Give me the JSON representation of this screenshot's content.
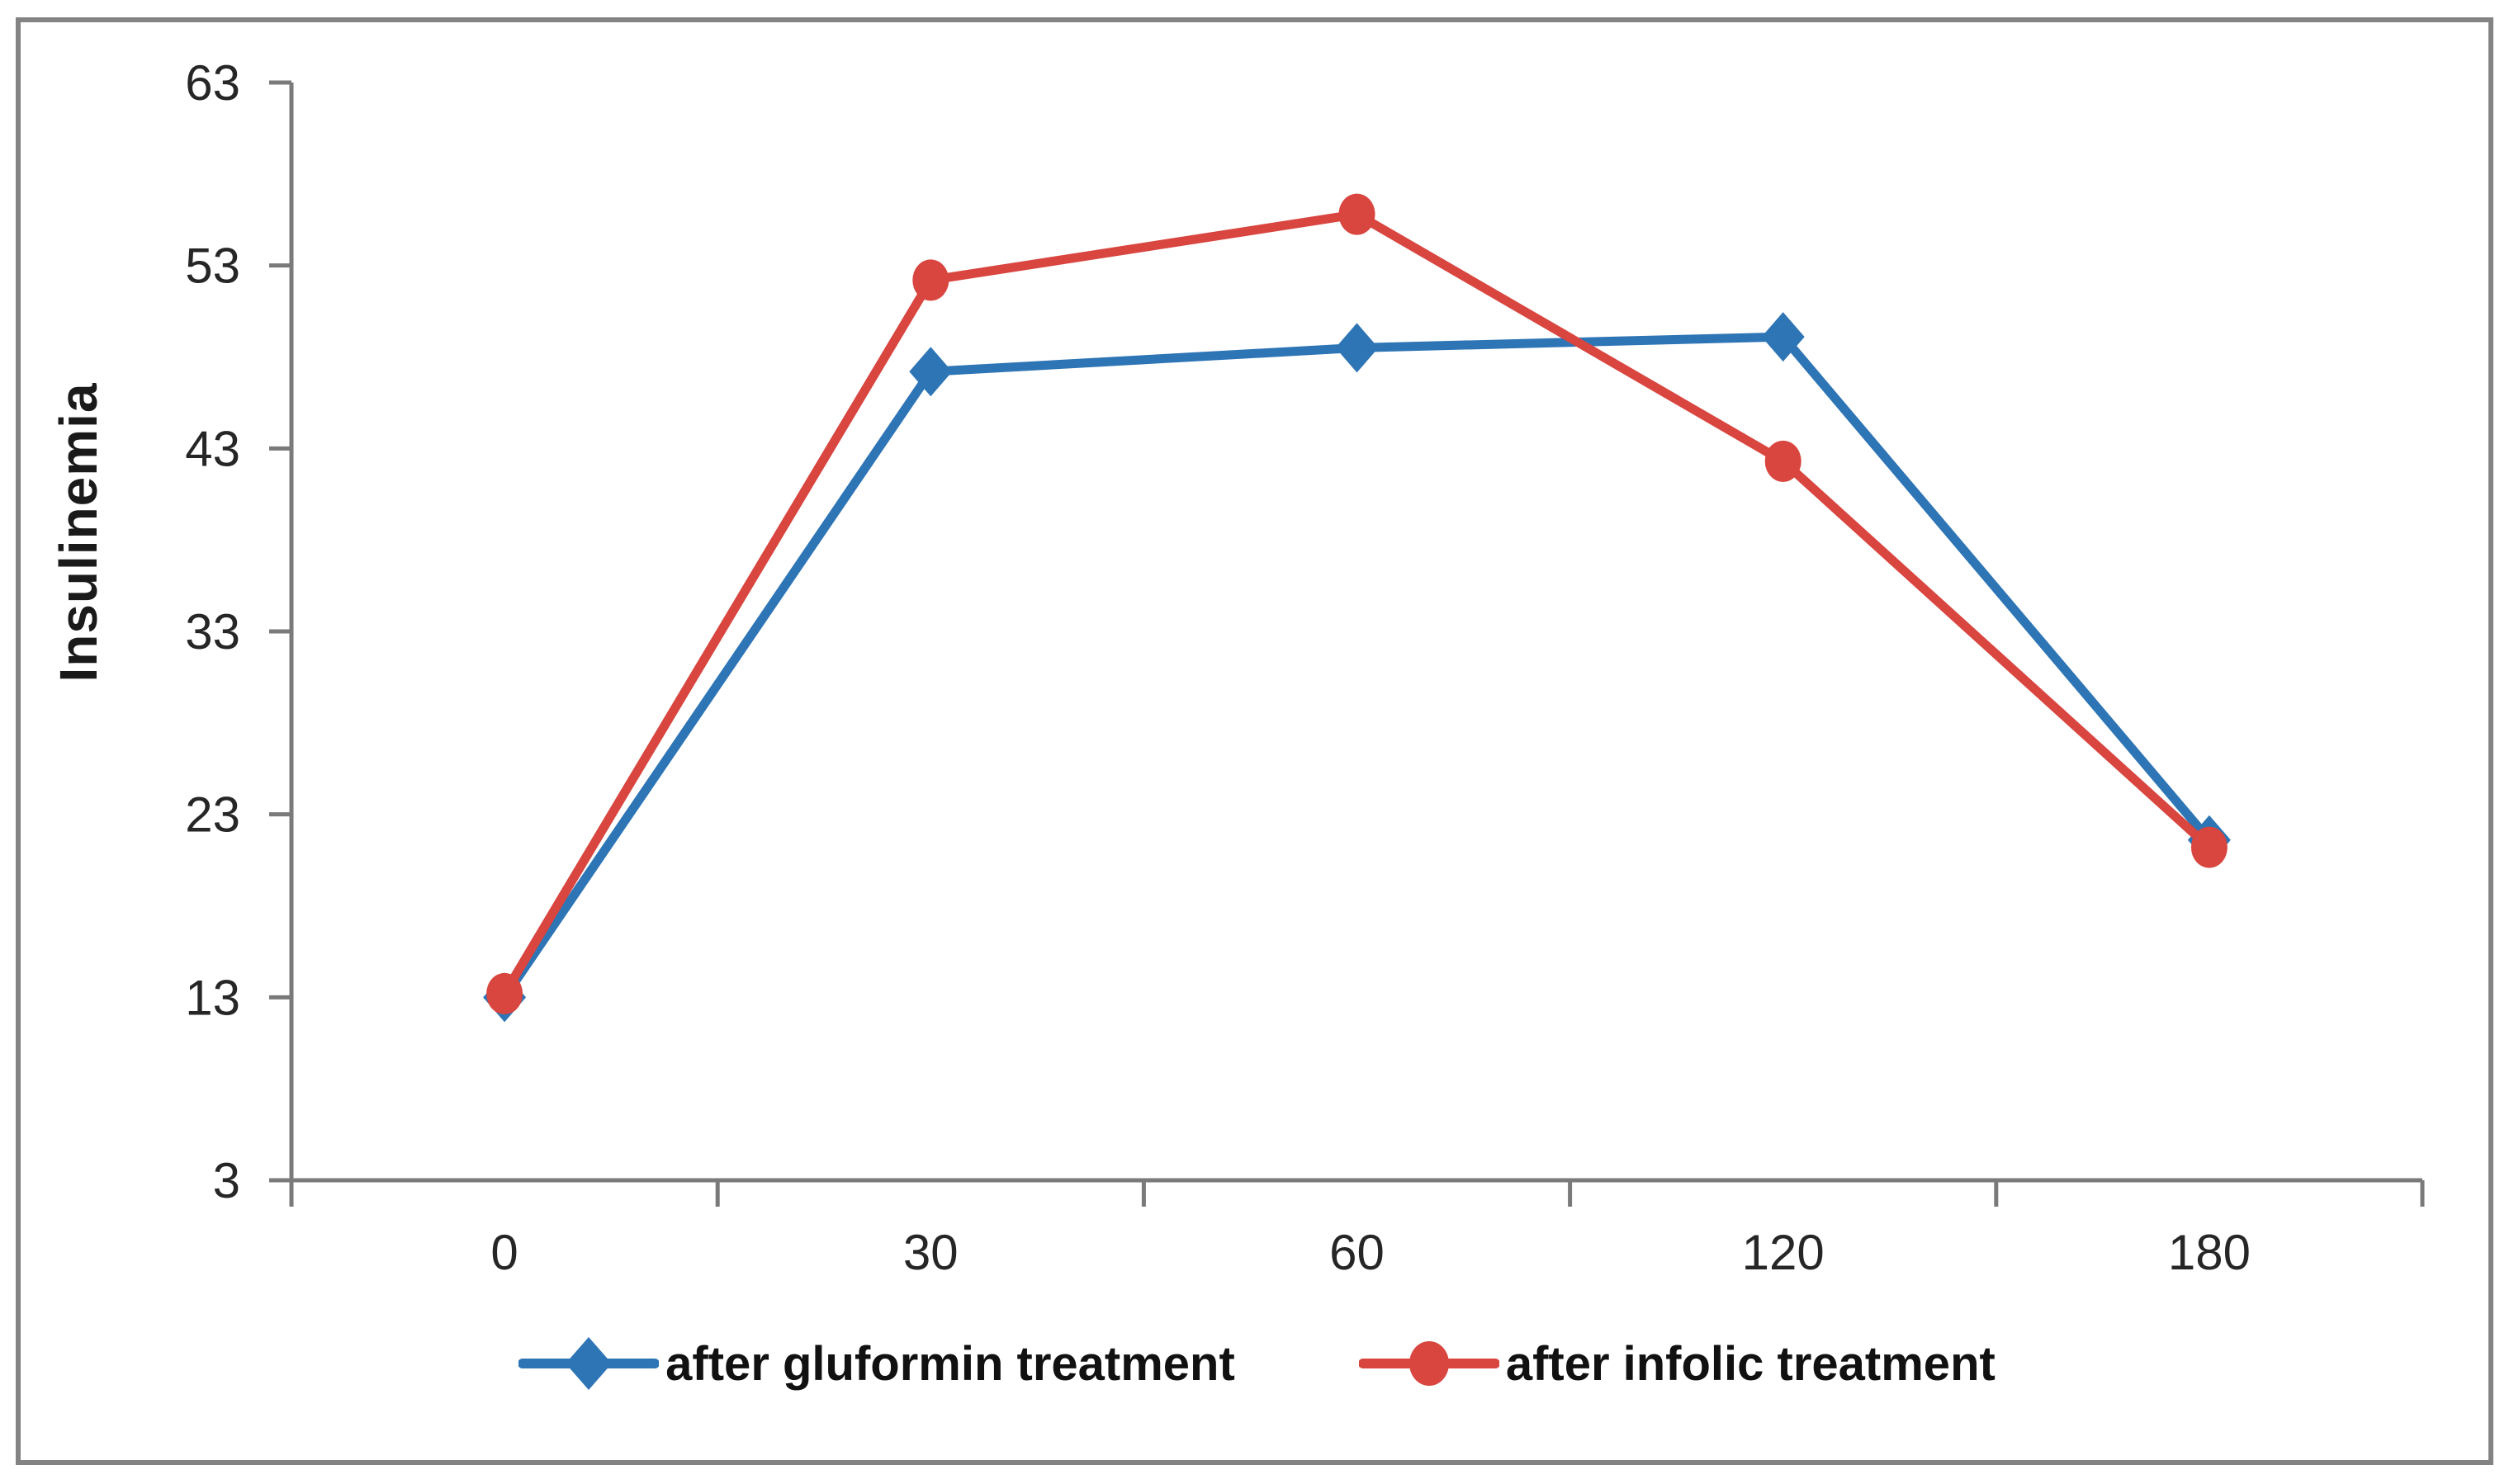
{
  "chart_data": {
    "type": "line",
    "title": "",
    "xlabel": "",
    "ylabel": "Insulinemia",
    "categories": [
      "0",
      "30",
      "60",
      "120",
      "180"
    ],
    "series": [
      {
        "name": "after gluformin treatment",
        "color": "#2E75B6",
        "marker": "diamond",
        "values": [
          13.0,
          47.2,
          48.5,
          49.1,
          21.6
        ]
      },
      {
        "name": "after infolic treatment",
        "color": "#D9453F",
        "marker": "circle",
        "values": [
          13.2,
          52.2,
          55.8,
          42.3,
          21.2
        ]
      }
    ],
    "y_axis": {
      "min": 3,
      "max": 63,
      "tick_step": 10,
      "tick_labels": [
        "3",
        "13",
        "23",
        "33",
        "43",
        "53",
        "63"
      ]
    },
    "x_axis": {
      "type": "category",
      "tick_labels": [
        "0",
        "30",
        "60",
        "120",
        "180"
      ]
    },
    "legend_position": "bottom",
    "grid": false
  },
  "colors": {
    "background": "#ffffff",
    "outer_border": "#838383",
    "axis": "#7a7a7a",
    "tick_text": "#262626",
    "legend_text": "#111111",
    "series_blue": "#2E75B6",
    "series_red": "#D9453F"
  }
}
